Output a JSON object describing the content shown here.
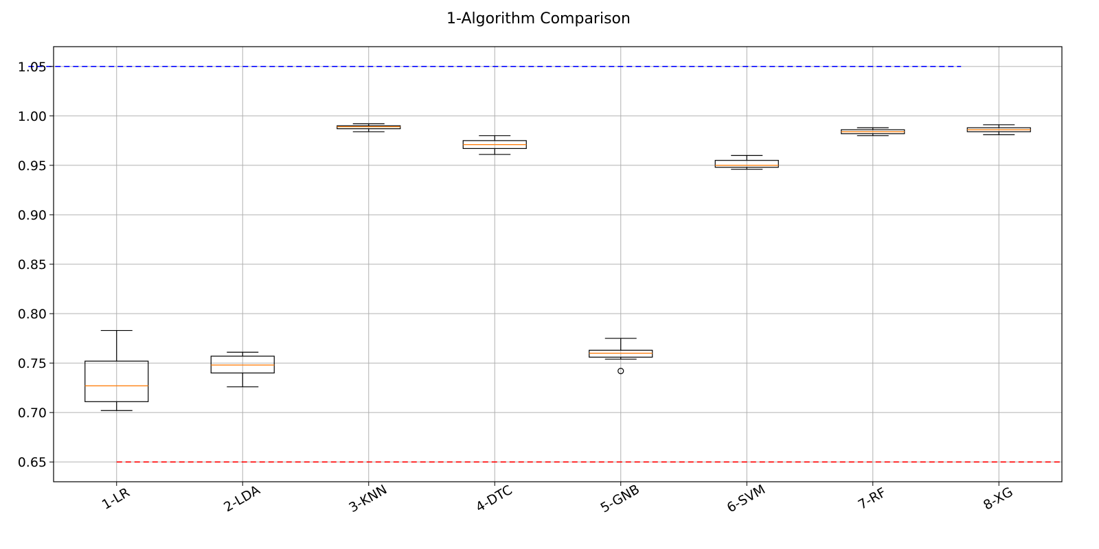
{
  "chart_data": {
    "type": "box",
    "title": "1-Algorithm Comparison",
    "xlabel": "",
    "ylabel": "",
    "categories": [
      "1-LR",
      "2-LDA",
      "3-KNN",
      "4-DTC",
      "5-GNB",
      "6-SVM",
      "7-RF",
      "8-XG"
    ],
    "ylim": [
      0.63,
      1.07
    ],
    "yticks": [
      "0.65",
      "0.70",
      "0.75",
      "0.80",
      "0.85",
      "0.90",
      "0.95",
      "1.00",
      "1.05"
    ],
    "grid": true,
    "boxes": [
      {
        "label": "1-LR",
        "whislo": 0.702,
        "q1": 0.711,
        "med": 0.727,
        "q3": 0.752,
        "whishi": 0.783,
        "fliers": []
      },
      {
        "label": "2-LDA",
        "whislo": 0.726,
        "q1": 0.74,
        "med": 0.748,
        "q3": 0.757,
        "whishi": 0.761,
        "fliers": []
      },
      {
        "label": "3-KNN",
        "whislo": 0.984,
        "q1": 0.987,
        "med": 0.989,
        "q3": 0.99,
        "whishi": 0.992,
        "fliers": []
      },
      {
        "label": "4-DTC",
        "whislo": 0.961,
        "q1": 0.967,
        "med": 0.971,
        "q3": 0.975,
        "whishi": 0.98,
        "fliers": []
      },
      {
        "label": "5-GNB",
        "whislo": 0.754,
        "q1": 0.756,
        "med": 0.76,
        "q3": 0.763,
        "whishi": 0.775,
        "fliers": [
          0.742
        ]
      },
      {
        "label": "6-SVM",
        "whislo": 0.946,
        "q1": 0.948,
        "med": 0.95,
        "q3": 0.955,
        "whishi": 0.96,
        "fliers": []
      },
      {
        "label": "7-RF",
        "whislo": 0.98,
        "q1": 0.982,
        "med": 0.984,
        "q3": 0.986,
        "whishi": 0.988,
        "fliers": []
      },
      {
        "label": "8-XG",
        "whislo": 0.981,
        "q1": 0.984,
        "med": 0.986,
        "q3": 0.988,
        "whishi": 0.991,
        "fliers": []
      }
    ],
    "reference_lines": [
      {
        "y": 1.05,
        "x_from": 0.3,
        "x_to": 7.7,
        "color": "#0000ff",
        "style": "dashed"
      },
      {
        "y": 0.65,
        "x_from": 1.0,
        "x_to": 8.5,
        "color": "#ff0000",
        "style": "dashed"
      }
    ],
    "colors": {
      "box": "#000000",
      "median": "#ff7f0e",
      "grid": "#b0b0b0"
    }
  }
}
